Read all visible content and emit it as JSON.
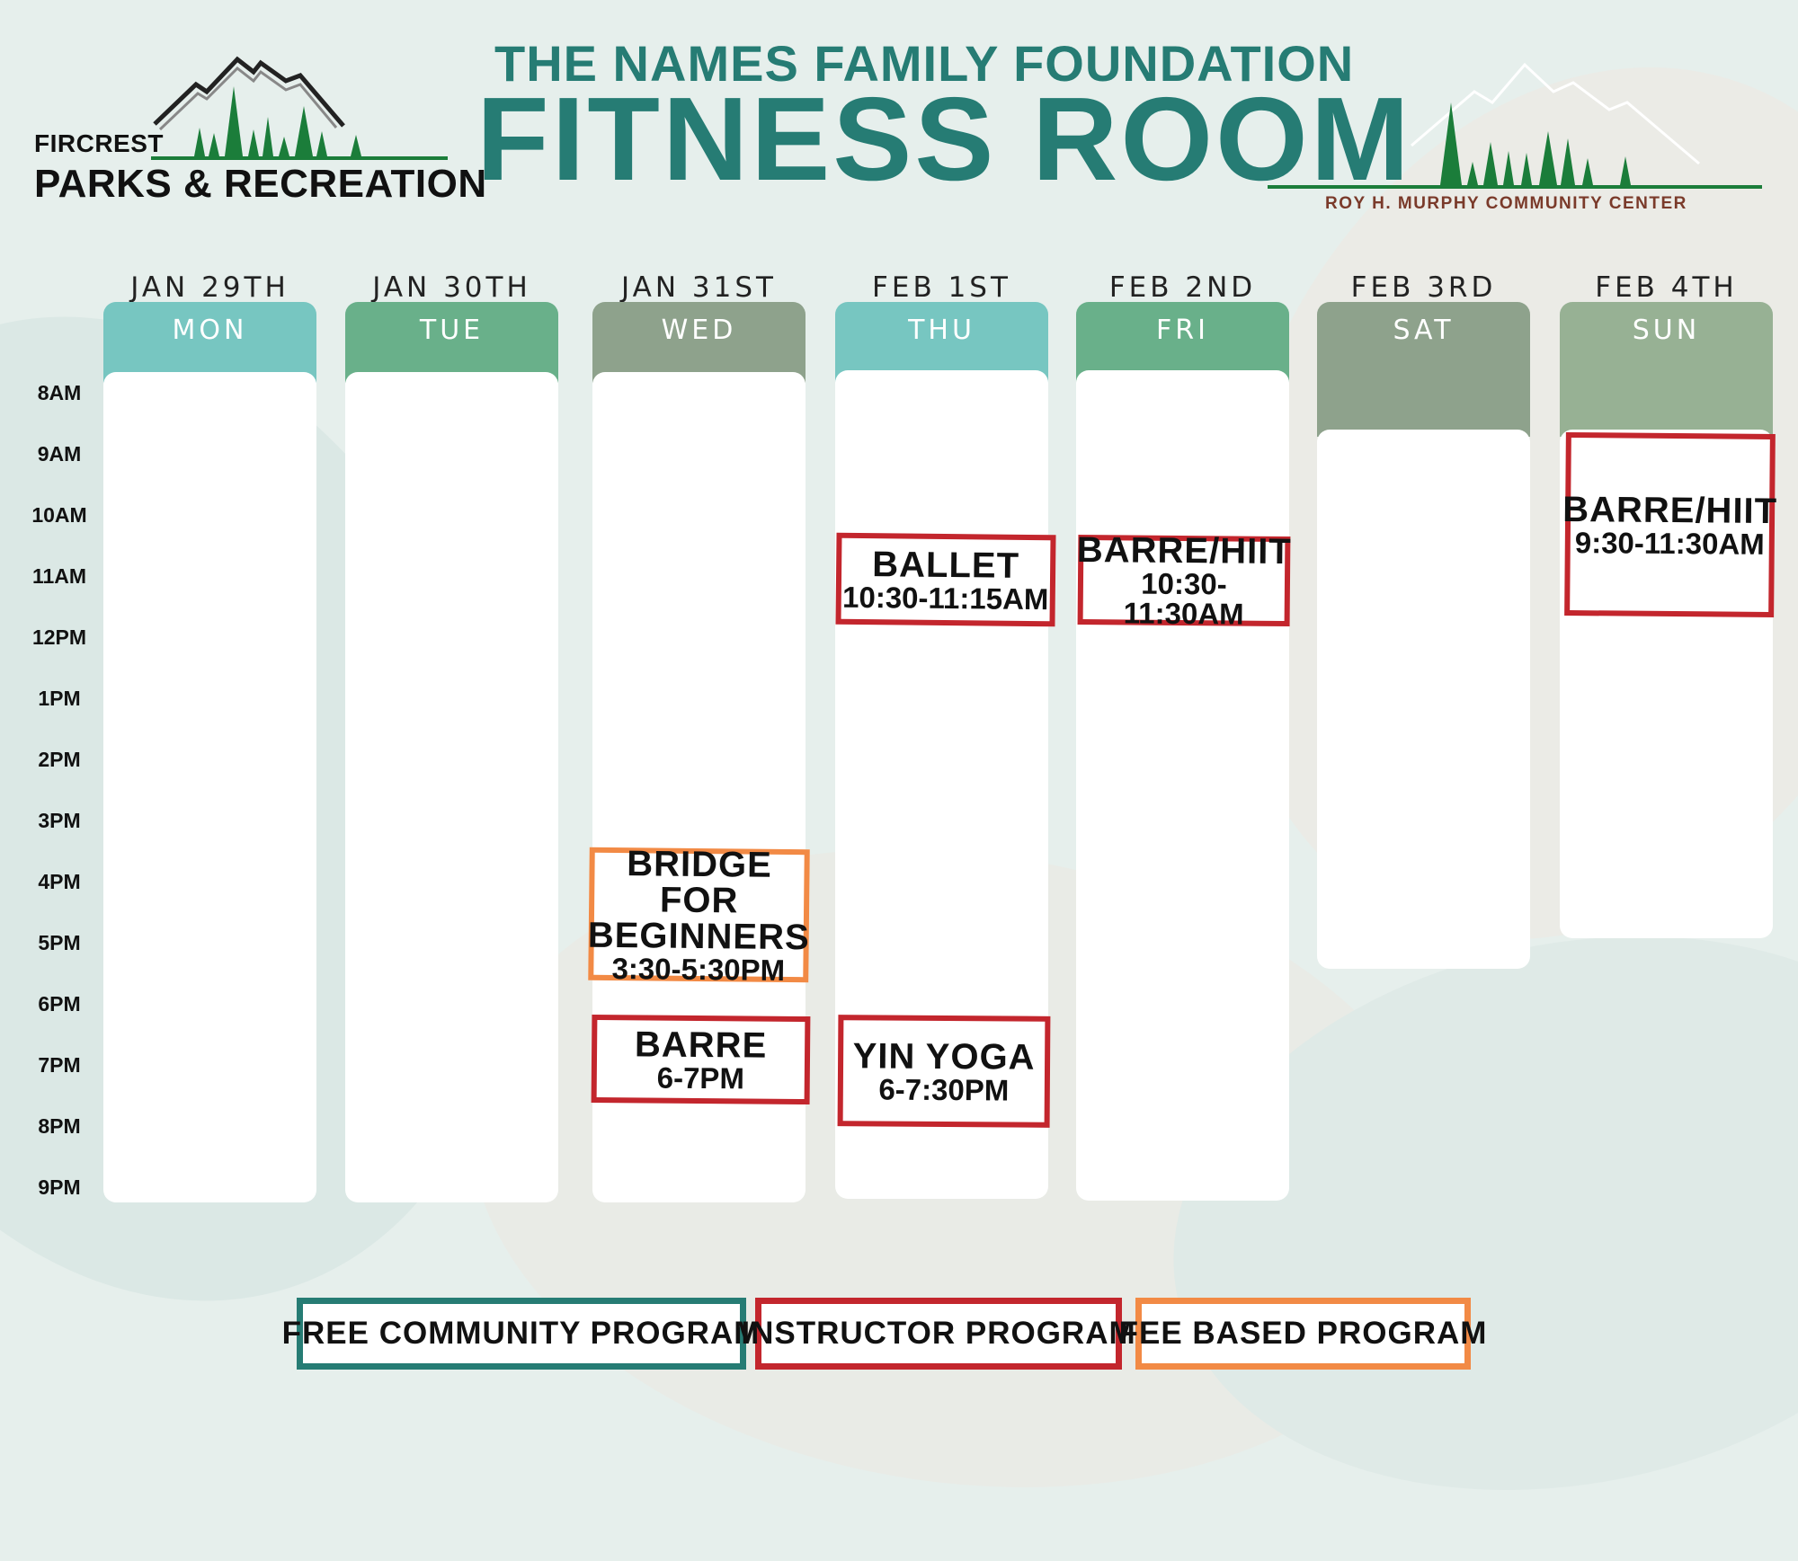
{
  "header": {
    "subtitle": "THE NAMES FAMILY FOUNDATION",
    "title": "FITNESS ROOM",
    "left_logo": {
      "small": "FIRCREST",
      "big": "PARKS & RECREATION"
    },
    "right_logo": {
      "text": "ROY H. MURPHY COMMUNITY CENTER"
    }
  },
  "colors": {
    "teal": "#267c74",
    "mon_header": "#77c6c1",
    "tue_header": "#69b08a",
    "wed_header": "#8ea28c",
    "instructor_border": "#c3262d",
    "fee_border": "#f28a45"
  },
  "times": [
    "8AM",
    "9AM",
    "10AM",
    "11AM",
    "12PM",
    "1PM",
    "2PM",
    "3PM",
    "4PM",
    "5PM",
    "6PM",
    "7PM",
    "8PM",
    "9PM"
  ],
  "days": [
    {
      "date": "JAN 29TH",
      "day": "MON"
    },
    {
      "date": "JAN 30TH",
      "day": "TUE"
    },
    {
      "date": "JAN 31ST",
      "day": "WED"
    },
    {
      "date": "FEB 1ST",
      "day": "THU"
    },
    {
      "date": "FEB 2ND",
      "day": "FRI"
    },
    {
      "date": "FEB 3RD",
      "day": "SAT"
    },
    {
      "date": "FEB 4TH",
      "day": "SUN"
    }
  ],
  "events": [
    {
      "day": "WED",
      "name_line1": "BRIDGE FOR",
      "name_line2": "BEGINNERS",
      "time": "3:30-5:30PM",
      "type": "fee"
    },
    {
      "day": "WED",
      "name": "BARRE",
      "time": "6-7PM",
      "type": "instructor"
    },
    {
      "day": "THU",
      "name": "BALLET",
      "time": "10:30-11:15AM",
      "type": "instructor"
    },
    {
      "day": "THU",
      "name": "YIN YOGA",
      "time": "6-7:30PM",
      "type": "instructor"
    },
    {
      "day": "FRI",
      "name": "BARRE/HIIT",
      "time": "10:30-11:30AM",
      "type": "instructor"
    },
    {
      "day": "SUN",
      "name": "BARRE/HIIT",
      "time": "9:30-11:30AM",
      "type": "instructor"
    }
  ],
  "legend": {
    "free": "FREE COMMUNITY PROGRAM",
    "instructor": "INSTRUCTOR PROGRAM",
    "fee": "FEE BASED PROGRAM"
  }
}
